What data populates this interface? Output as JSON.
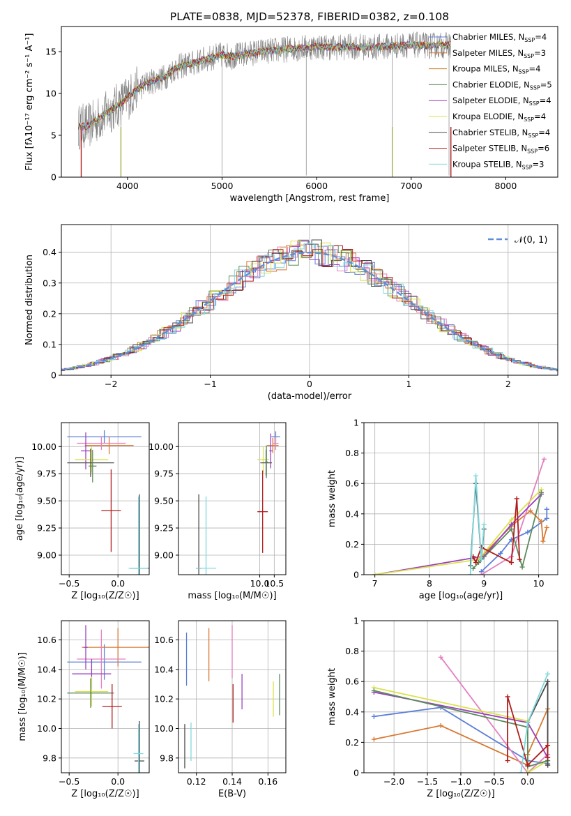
{
  "figure_title": "PLATE=0838, MJD=52378, FIBERID=0382, z=0.108",
  "colors": {
    "Chabrier MILES": "#5b7fd9",
    "Salpeter MILES": "#d97832",
    "Kroupa MILES": "#c47a1e",
    "Chabrier ELODIE": "#5b8a5b",
    "Salpeter ELODIE": "#9b3fbf",
    "Kroupa ELODIE": "#d9e34a",
    "Chabrier STELIB": "#4a4a4a",
    "Salpeter STELIB": "#b01c1c",
    "Kroupa STELIB": "#7fd9dd",
    "Salpeter MILES pink": "#e37fbf",
    "data": "#7f7f7f",
    "normal": "#5b8fd9"
  },
  "chart_data": [
    {
      "id": "spectrum",
      "type": "line",
      "title": "PLATE=0838, MJD=52378, FIBERID=0382, z=0.108",
      "xlabel": "wavelength [Angstrom, rest frame]",
      "ylabel": "Flux [f",
      "ylabel_full": "Flux [fλ10⁻¹⁷ erg cm⁻² s⁻¹ A⁻¹]",
      "xlim": [
        3300,
        8550
      ],
      "ylim": [
        0,
        18
      ],
      "xticks": [
        4000,
        5000,
        6000,
        7000,
        8000
      ],
      "yticks": [
        0,
        5,
        10,
        15
      ],
      "grid": false,
      "legend_position": "right",
      "legend": [
        {
          "label": "Chabrier MILES, N",
          "sub": "SSP",
          "rest": "=4",
          "color": "#5b7fd9"
        },
        {
          "label": "Salpeter MILES, N",
          "sub": "SSP",
          "rest": "=3",
          "color": "#d97832"
        },
        {
          "label": "Kroupa MILES, N",
          "sub": "SSP",
          "rest": "=4",
          "color": "#c47a1e"
        },
        {
          "label": "Chabrier ELODIE, N",
          "sub": "SSP",
          "rest": "=5",
          "color": "#5b8a5b"
        },
        {
          "label": "Salpeter ELODIE, N",
          "sub": "SSP",
          "rest": "=4",
          "color": "#9b3fbf"
        },
        {
          "label": "Kroupa ELODIE, N",
          "sub": "SSP",
          "rest": "=4",
          "color": "#d9e34a"
        },
        {
          "label": "Chabrier STELIB, N",
          "sub": "SSP",
          "rest": "=4",
          "color": "#4a4a4a"
        },
        {
          "label": "Salpeter STELIB, N",
          "sub": "SSP",
          "rest": "=6",
          "color": "#b01c1c"
        },
        {
          "label": "Kroupa STELIB, N",
          "sub": "SSP",
          "rest": "=3",
          "color": "#7fd9dd"
        }
      ],
      "continuum": [
        [
          3480,
          6.0
        ],
        [
          3600,
          6.2
        ],
        [
          3700,
          7.0
        ],
        [
          3800,
          7.8
        ],
        [
          3900,
          8.6
        ],
        [
          4000,
          9.5
        ],
        [
          4100,
          10.5
        ],
        [
          4200,
          11.2
        ],
        [
          4300,
          11.6
        ],
        [
          4400,
          12.0
        ],
        [
          4500,
          13.0
        ],
        [
          4600,
          13.4
        ],
        [
          4700,
          13.6
        ],
        [
          4800,
          14.0
        ],
        [
          4900,
          14.3
        ],
        [
          5000,
          14.6
        ],
        [
          5100,
          14.4
        ],
        [
          5200,
          14.6
        ],
        [
          5400,
          15.0
        ],
        [
          5600,
          15.2
        ],
        [
          5800,
          15.4
        ],
        [
          6000,
          15.6
        ],
        [
          6200,
          15.5
        ],
        [
          6400,
          15.6
        ],
        [
          6600,
          15.5
        ],
        [
          6800,
          15.7
        ],
        [
          7000,
          15.8
        ],
        [
          7200,
          15.7
        ],
        [
          7400,
          15.8
        ]
      ]
    },
    {
      "id": "residuals",
      "type": "step",
      "xlabel": "(data-model)/error",
      "ylabel": "Normed distribution",
      "xlim": [
        -2.5,
        2.5
      ],
      "ylim": [
        0,
        0.49
      ],
      "xticks": [
        -2,
        -1,
        0,
        1,
        2
      ],
      "yticks": [
        0.0,
        0.1,
        0.2,
        0.3,
        0.4
      ],
      "grid": true,
      "legend_position": "top-right",
      "legend": [
        {
          "label": "𝒩(0, 1)",
          "color": "#5b8fd9",
          "style": "dashed"
        }
      ]
    },
    {
      "id": "age_vs_Z",
      "type": "scatter-errorbar",
      "xlabel": "Z [log",
      "xlabel_full": "Z [log₁₀(Z/Z☉)]",
      "ylabel_full": "age  [log₁₀(age/yr)]",
      "xlim": [
        -0.58,
        0.32
      ],
      "ylim": [
        8.82,
        10.22
      ],
      "xticks": [
        -0.5,
        0.0
      ],
      "xticklabels": [
        "−0.5",
        "0.0"
      ],
      "yticks": [
        9.0,
        9.25,
        9.5,
        9.75,
        10.0
      ],
      "yticklabels": [
        "9.00",
        "9.25",
        "9.50",
        "9.75",
        "10.00"
      ],
      "grid": true,
      "points": [
        {
          "x": -0.14,
          "y": 10.09,
          "xerr": 0.38,
          "yerr": 0.06,
          "color": "#5b7fd9"
        },
        {
          "x": -0.09,
          "y": 10.01,
          "xerr": 0.25,
          "yerr": 0.08,
          "color": "#d97832"
        },
        {
          "x": -0.17,
          "y": 10.03,
          "xerr": 0.25,
          "yerr": 0.06,
          "color": "#e37fbf"
        },
        {
          "x": -0.33,
          "y": 9.96,
          "xerr": 0.05,
          "yerr": 0.17,
          "color": "#9b3fbf"
        },
        {
          "x": -0.27,
          "y": 9.88,
          "xerr": 0.17,
          "yerr": 0.12,
          "color": "#d9e34a"
        },
        {
          "x": -0.28,
          "y": 9.85,
          "xerr": 0.24,
          "yerr": 0.13,
          "color": "#4a4a4a"
        },
        {
          "x": -0.26,
          "y": 9.82,
          "xerr": 0.04,
          "yerr": 0.15,
          "color": "#5b8a5b"
        },
        {
          "x": -0.07,
          "y": 9.41,
          "xerr": 0.1,
          "yerr": 0.38,
          "color": "#b01c1c"
        },
        {
          "x": 0.22,
          "y": 8.88,
          "xerr": 0.1,
          "yerr": 0.68,
          "color": "#4a4a4a"
        },
        {
          "x": 0.21,
          "y": 8.88,
          "xerr": 0.1,
          "yerr": 0.66,
          "color": "#7fd9dd"
        }
      ]
    },
    {
      "id": "age_vs_mass",
      "type": "scatter-errorbar",
      "xlabel_full": "mass [log₁₀(M/M☉)]",
      "xlim": [
        7.2,
        10.9
      ],
      "ylim": [
        8.82,
        10.22
      ],
      "xticks": [
        10.0,
        10.5
      ],
      "xticklabels": [
        "10.0",
        "10.5"
      ],
      "yticks": [
        9.0,
        9.25,
        9.5,
        9.75,
        10.0
      ],
      "yticklabels": [
        "9.00",
        "9.25",
        "9.50",
        "9.75",
        "10.00"
      ],
      "grid": true,
      "points": [
        {
          "x": 10.55,
          "y": 10.09,
          "xerr": 0.15,
          "yerr": 0.05,
          "color": "#5b7fd9"
        },
        {
          "x": 10.45,
          "y": 10.01,
          "xerr": 0.2,
          "yerr": 0.07,
          "color": "#d97832"
        },
        {
          "x": 10.55,
          "y": 10.03,
          "xerr": 0.1,
          "yerr": 0.06,
          "color": "#e37fbf"
        },
        {
          "x": 10.38,
          "y": 9.96,
          "xerr": 0.05,
          "yerr": 0.16,
          "color": "#9b3fbf"
        },
        {
          "x": 10.12,
          "y": 9.88,
          "xerr": 0.2,
          "yerr": 0.12,
          "color": "#d9e34a"
        },
        {
          "x": 10.22,
          "y": 9.85,
          "xerr": 0.2,
          "yerr": 0.12,
          "color": "#4a4a4a"
        },
        {
          "x": 10.23,
          "y": 9.86,
          "xerr": 0.04,
          "yerr": 0.15,
          "color": "#5b8a5b"
        },
        {
          "x": 10.1,
          "y": 9.4,
          "xerr": 0.18,
          "yerr": 0.38,
          "color": "#b01c1c"
        },
        {
          "x": 7.9,
          "y": 8.88,
          "xerr": 0.1,
          "yerr": 0.68,
          "color": "#4a4a4a"
        },
        {
          "x": 8.15,
          "y": 8.88,
          "xerr": 0.35,
          "yerr": 0.66,
          "color": "#7fd9dd"
        }
      ]
    },
    {
      "id": "weight_vs_age",
      "type": "line",
      "xlabel_full": "age  [log₁₀(age/yr)]",
      "ylabel": "mass weight",
      "xlim": [
        6.8,
        10.35
      ],
      "ylim": [
        0,
        1.0
      ],
      "xticks": [
        7,
        8,
        9,
        10
      ],
      "yticks": [
        0.0,
        0.2,
        0.4,
        0.6,
        0.8,
        1.0
      ],
      "grid": true,
      "series": [
        {
          "color": "#5b7fd9",
          "x": [
            8.95,
            9.3,
            9.5,
            9.8,
            10.15,
            10.15
          ],
          "y": [
            0.02,
            0.14,
            0.23,
            0.28,
            0.37,
            0.43
          ]
        },
        {
          "color": "#d97832",
          "x": [
            8.9,
            9.5,
            9.85,
            10.05,
            10.08,
            10.15
          ],
          "y": [
            0.1,
            0.32,
            0.42,
            0.35,
            0.22,
            0.31
          ]
        },
        {
          "color": "#e37fbf",
          "x": [
            8.95,
            9.5,
            10.1
          ],
          "y": [
            0.0,
            0.12,
            0.76
          ]
        },
        {
          "color": "#9b3fbf",
          "x": [
            7.0,
            8.8,
            9.0,
            9.5,
            10.05
          ],
          "y": [
            0.0,
            0.11,
            0.12,
            0.33,
            0.53
          ]
        },
        {
          "color": "#d9e34a",
          "x": [
            7.0,
            8.9,
            9.5,
            10.05
          ],
          "y": [
            0.0,
            0.1,
            0.36,
            0.56
          ]
        },
        {
          "color": "#5b8a5b",
          "x": [
            8.8,
            8.9,
            9.5,
            9.7,
            10.05
          ],
          "y": [
            0.04,
            0.08,
            0.3,
            0.05,
            0.54
          ]
        },
        {
          "color": "#4a4a4a",
          "x": [
            8.75,
            8.85,
            8.95,
            9.0
          ],
          "y": [
            0.06,
            0.6,
            0.1,
            0.3
          ]
        },
        {
          "color": "#b01c1c",
          "x": [
            8.8,
            8.85,
            8.95,
            9.5,
            9.6,
            9.65
          ],
          "y": [
            0.12,
            0.08,
            0.18,
            0.08,
            0.5,
            0.1
          ]
        },
        {
          "color": "#7fd9dd",
          "x": [
            8.75,
            8.85,
            8.95,
            9.0
          ],
          "y": [
            0.0,
            0.65,
            0.1,
            0.33
          ]
        }
      ]
    },
    {
      "id": "mass_vs_Z",
      "type": "scatter-errorbar",
      "xlabel_full": "Z [log₁₀(Z/Z☉)]",
      "ylabel_full": "mass [log₁₀(M/M☉)]",
      "xlim": [
        -0.58,
        0.32
      ],
      "ylim": [
        9.7,
        10.73
      ],
      "xticks": [
        -0.5,
        0.0
      ],
      "xticklabels": [
        "−0.5",
        "0.0"
      ],
      "yticks": [
        9.8,
        10.0,
        10.2,
        10.4,
        10.6
      ],
      "yticklabels": [
        "9.8",
        "10.0",
        "10.2",
        "10.4",
        "10.6"
      ],
      "grid": true,
      "points": [
        {
          "x": -0.14,
          "y": 10.45,
          "xerr": 0.38,
          "yerr": 0.12,
          "color": "#5b7fd9"
        },
        {
          "x": -0.0,
          "y": 10.55,
          "xerr": 0.37,
          "yerr": 0.13,
          "color": "#d97832"
        },
        {
          "x": -0.17,
          "y": 10.47,
          "xerr": 0.25,
          "yerr": 0.2,
          "color": "#e37fbf"
        },
        {
          "x": -0.33,
          "y": 10.55,
          "xerr": 0.02,
          "yerr": 0.15,
          "color": "#9b3fbf"
        },
        {
          "x": -0.27,
          "y": 10.37,
          "xerr": 0.2,
          "yerr": 0.1,
          "color": "#9b3fbf"
        },
        {
          "x": -0.27,
          "y": 10.25,
          "xerr": 0.17,
          "yerr": 0.1,
          "color": "#d9e34a"
        },
        {
          "x": -0.28,
          "y": 10.24,
          "xerr": 0.24,
          "yerr": 0.1,
          "color": "#5b8a5b"
        },
        {
          "x": -0.06,
          "y": 10.15,
          "xerr": 0.1,
          "yerr": 0.15,
          "color": "#b01c1c"
        },
        {
          "x": 0.22,
          "y": 9.78,
          "xerr": 0.05,
          "yerr": 0.27,
          "color": "#4a4a4a"
        },
        {
          "x": 0.21,
          "y": 9.83,
          "xerr": 0.05,
          "yerr": 0.2,
          "color": "#7fd9dd"
        }
      ]
    },
    {
      "id": "mass_vs_ebv",
      "type": "scatter-errorbar",
      "xlabel": "E(B-V)",
      "xlim": [
        0.11,
        0.17
      ],
      "ylim": [
        9.7,
        10.73
      ],
      "xticks": [
        0.12,
        0.14,
        0.16
      ],
      "xticklabels": [
        "0.12",
        "0.14",
        "0.16"
      ],
      "yticks": [
        9.8,
        10.0,
        10.2,
        10.4,
        10.6
      ],
      "yticklabels": [
        "9.8",
        "10.0",
        "10.2",
        "10.4",
        "10.6"
      ],
      "grid": true,
      "points": [
        {
          "x": 0.1145,
          "y": 10.47,
          "xerr": 0.0,
          "yerr": 0.18,
          "color": "#5b7fd9"
        },
        {
          "x": 0.127,
          "y": 10.5,
          "xerr": 0.0,
          "yerr": 0.18,
          "color": "#d97832"
        },
        {
          "x": 0.14,
          "y": 10.52,
          "xerr": 0.0,
          "yerr": 0.18,
          "color": "#e37fbf"
        },
        {
          "x": 0.1455,
          "y": 10.25,
          "xerr": 0.0,
          "yerr": 0.12,
          "color": "#9b3fbf"
        },
        {
          "x": 0.163,
          "y": 10.2,
          "xerr": 0.0,
          "yerr": 0.12,
          "color": "#d9e34a"
        },
        {
          "x": 0.1665,
          "y": 10.23,
          "xerr": 0.0,
          "yerr": 0.14,
          "color": "#5b8a5b"
        },
        {
          "x": 0.1405,
          "y": 10.17,
          "xerr": 0.0,
          "yerr": 0.13,
          "color": "#b01c1c"
        },
        {
          "x": 0.1135,
          "y": 9.88,
          "xerr": 0.0,
          "yerr": 0.15,
          "color": "#4a4a4a"
        },
        {
          "x": 0.117,
          "y": 9.91,
          "xerr": 0.0,
          "yerr": 0.13,
          "color": "#7fd9dd"
        }
      ]
    },
    {
      "id": "weight_vs_Z",
      "type": "line",
      "xlabel_full": "Z [log₁₀(Z/Z☉)]",
      "ylabel": "mass weight",
      "xlim": [
        -2.45,
        0.45
      ],
      "ylim": [
        0,
        1.0
      ],
      "xticks": [
        -2.0,
        -1.5,
        -1.0,
        -0.5,
        0.0
      ],
      "xticklabels": [
        "−2.0",
        "−1.5",
        "−1.0",
        "−0.5",
        "0.0"
      ],
      "yticks": [
        0.0,
        0.2,
        0.4,
        0.6,
        0.8,
        1.0
      ],
      "grid": true,
      "series": [
        {
          "color": "#5b7fd9",
          "x": [
            -2.3,
            -1.3,
            0.0,
            0.3
          ],
          "y": [
            0.37,
            0.43,
            0.08,
            0.06
          ]
        },
        {
          "color": "#d97832",
          "x": [
            -2.3,
            -1.3,
            0.0,
            0.0,
            0.3,
            0.3
          ],
          "y": [
            0.22,
            0.31,
            0.05,
            0.12,
            0.42,
            0.05
          ]
        },
        {
          "color": "#e37fbf",
          "x": [
            -1.3,
            0.0,
            0.3
          ],
          "y": [
            0.76,
            0.0,
            0.12
          ]
        },
        {
          "color": "#9b3fbf",
          "x": [
            -2.3,
            0.0,
            0.3
          ],
          "y": [
            0.53,
            0.33,
            0.1
          ]
        },
        {
          "color": "#d9e34a",
          "x": [
            -2.3,
            0.0,
            0.0,
            0.3
          ],
          "y": [
            0.56,
            0.34,
            0.0,
            0.08
          ]
        },
        {
          "color": "#5b8a5b",
          "x": [
            -2.3,
            0.0,
            0.0,
            0.3
          ],
          "y": [
            0.54,
            0.3,
            0.04,
            0.08
          ]
        },
        {
          "color": "#4a4a4a",
          "x": [
            0.0,
            0.3,
            0.3
          ],
          "y": [
            0.33,
            0.6,
            0.05
          ]
        },
        {
          "color": "#b01c1c",
          "x": [
            -0.3,
            -0.3,
            0.0,
            0.3,
            0.3
          ],
          "y": [
            0.08,
            0.5,
            0.05,
            0.18,
            0.1
          ]
        },
        {
          "color": "#7fd9dd",
          "x": [
            -0.1,
            0.0,
            0.3
          ],
          "y": [
            0.0,
            0.33,
            0.65
          ]
        }
      ]
    }
  ]
}
